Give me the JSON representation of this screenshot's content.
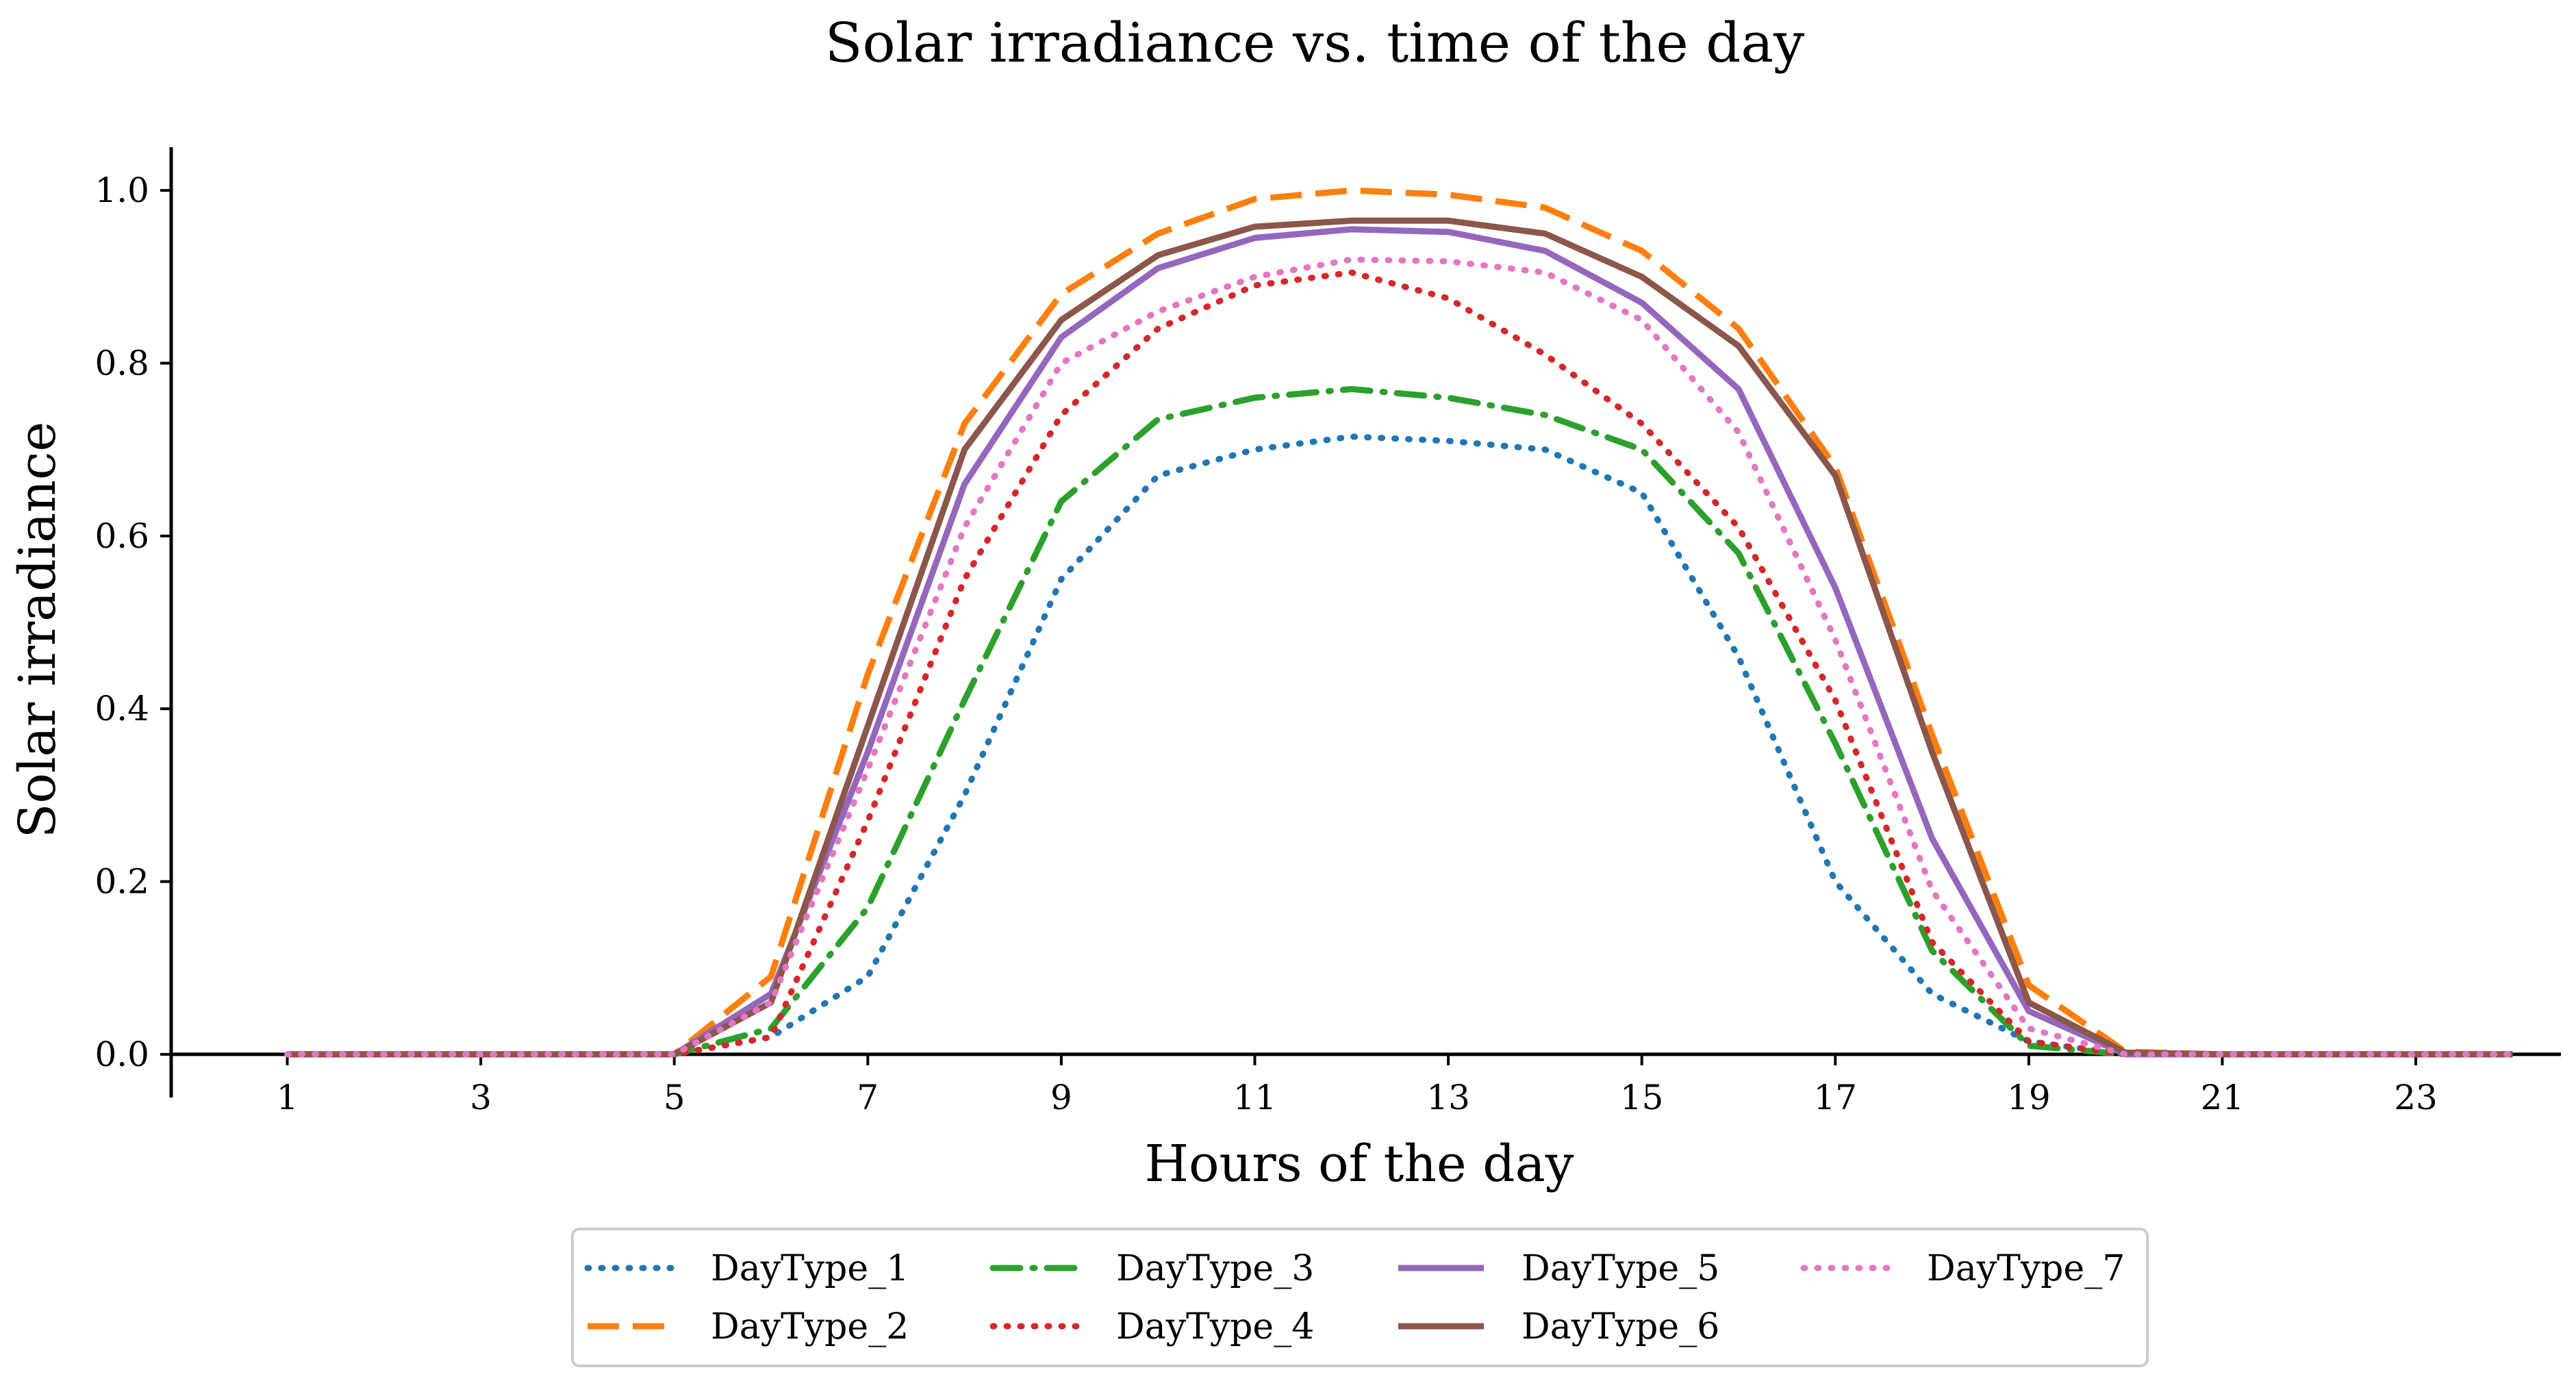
{
  "chart_data": {
    "type": "line",
    "title": "Solar irradiance vs. time of the day",
    "xlabel": "Hours of the day",
    "ylabel": "Solar irradiance",
    "xlim": [
      -0.2,
      24.5
    ],
    "ylim": [
      -0.05,
      1.05
    ],
    "x_ticks": [
      1,
      3,
      5,
      7,
      9,
      11,
      13,
      15,
      17,
      19,
      21,
      23
    ],
    "y_ticks": [
      0.0,
      0.2,
      0.4,
      0.6,
      0.8,
      1.0
    ],
    "y_tick_labels": [
      "0.0",
      "0.2",
      "0.4",
      "0.6",
      "0.8",
      "1.0"
    ],
    "grid": false,
    "legend_position": "bottom-center",
    "x": [
      1,
      2,
      3,
      4,
      5,
      6,
      7,
      8,
      9,
      10,
      11,
      12,
      13,
      14,
      15,
      16,
      17,
      18,
      19,
      20,
      21,
      22,
      23,
      24
    ],
    "series": [
      {
        "name": "DayType_1",
        "color": "#1f77b4",
        "style": "dotted",
        "values": [
          0,
          0,
          0,
          0,
          0,
          0.02,
          0.09,
          0.3,
          0.55,
          0.67,
          0.7,
          0.715,
          0.71,
          0.7,
          0.65,
          0.46,
          0.2,
          0.07,
          0.015,
          0,
          0,
          0,
          0,
          0
        ]
      },
      {
        "name": "DayType_2",
        "color": "#ff7f0e",
        "style": "dashed",
        "values": [
          0,
          0,
          0,
          0,
          0,
          0.09,
          0.44,
          0.73,
          0.88,
          0.95,
          0.99,
          1.0,
          0.995,
          0.98,
          0.93,
          0.84,
          0.68,
          0.37,
          0.08,
          0.003,
          0,
          0,
          0,
          0
        ]
      },
      {
        "name": "DayType_3",
        "color": "#2ca02c",
        "style": "dashdot",
        "values": [
          0,
          0,
          0,
          0,
          0,
          0.03,
          0.17,
          0.41,
          0.64,
          0.735,
          0.76,
          0.77,
          0.76,
          0.74,
          0.7,
          0.58,
          0.36,
          0.12,
          0.01,
          0,
          0,
          0,
          0,
          0
        ]
      },
      {
        "name": "DayType_4",
        "color": "#d62728",
        "style": "dotted",
        "values": [
          0,
          0,
          0,
          0,
          0,
          0.02,
          0.27,
          0.55,
          0.74,
          0.84,
          0.89,
          0.905,
          0.875,
          0.81,
          0.73,
          0.61,
          0.41,
          0.13,
          0.015,
          0,
          0,
          0,
          0,
          0
        ]
      },
      {
        "name": "DayType_5",
        "color": "#9467bd",
        "style": "solid",
        "values": [
          0,
          0,
          0,
          0,
          0,
          0.07,
          0.35,
          0.66,
          0.83,
          0.91,
          0.945,
          0.955,
          0.952,
          0.93,
          0.87,
          0.77,
          0.54,
          0.25,
          0.05,
          0,
          0,
          0,
          0,
          0
        ]
      },
      {
        "name": "DayType_6",
        "color": "#8c564b",
        "style": "solid",
        "values": [
          0,
          0,
          0,
          0,
          0,
          0.06,
          0.38,
          0.7,
          0.85,
          0.925,
          0.958,
          0.965,
          0.965,
          0.95,
          0.9,
          0.82,
          0.67,
          0.35,
          0.06,
          0.002,
          0,
          0,
          0,
          0
        ]
      },
      {
        "name": "DayType_7",
        "color": "#e377c2",
        "style": "dotted",
        "values": [
          0,
          0,
          0,
          0,
          0,
          0.06,
          0.33,
          0.61,
          0.8,
          0.86,
          0.9,
          0.92,
          0.918,
          0.905,
          0.85,
          0.72,
          0.48,
          0.19,
          0.03,
          0,
          0,
          0,
          0,
          0
        ]
      }
    ]
  }
}
